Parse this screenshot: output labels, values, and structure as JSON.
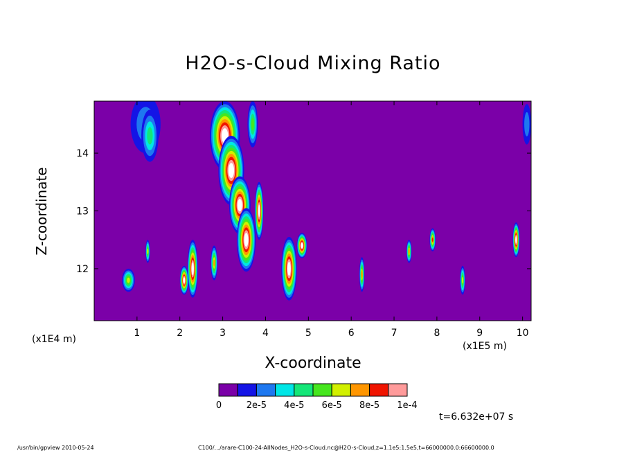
{
  "chart_data": {
    "type": "heatmap",
    "title": "H2O-s-Cloud Mixing Ratio",
    "xlabel": "X-coordinate",
    "ylabel": "Z-coordinate",
    "x_scale_label": "(x1E5 m)",
    "y_scale_label": "(x1E4 m)",
    "x_ticks": [
      1,
      2,
      3,
      4,
      5,
      6,
      7,
      8,
      9,
      10
    ],
    "y_ticks": [
      12,
      13,
      14
    ],
    "xlim": [
      0.0,
      10.2
    ],
    "ylim": [
      11.1,
      14.9
    ],
    "colorbar": {
      "levels": [
        0,
        1e-05,
        2e-05,
        3e-05,
        4e-05,
        5e-05,
        6e-05,
        7e-05,
        8e-05,
        9e-05,
        0.0001
      ],
      "tick_labels": [
        "0",
        "2e-5",
        "4e-5",
        "6e-5",
        "8e-5",
        "1e-4"
      ],
      "colors": [
        "#7b00a8",
        "#1414e6",
        "#1e78f0",
        "#00e6e6",
        "#14e678",
        "#46e61e",
        "#d2f000",
        "#ff9600",
        "#f01400",
        "#ff9b9b"
      ],
      "above_max_color": "#ffffff"
    },
    "cloud_features": [
      {
        "x": 1.2,
        "z": 14.5,
        "dx": 0.35,
        "dz": 0.5,
        "level": 2
      },
      {
        "x": 1.3,
        "z": 14.3,
        "dx": 0.2,
        "dz": 0.45,
        "level": 4
      },
      {
        "x": 3.05,
        "z": 14.3,
        "dx": 0.35,
        "dz": 0.6,
        "level": 11
      },
      {
        "x": 3.2,
        "z": 13.7,
        "dx": 0.3,
        "dz": 0.6,
        "level": 11
      },
      {
        "x": 3.4,
        "z": 13.1,
        "dx": 0.25,
        "dz": 0.5,
        "level": 11
      },
      {
        "x": 3.55,
        "z": 12.5,
        "dx": 0.22,
        "dz": 0.55,
        "level": 11
      },
      {
        "x": 3.7,
        "z": 14.5,
        "dx": 0.12,
        "dz": 0.4,
        "level": 5
      },
      {
        "x": 3.85,
        "z": 13.0,
        "dx": 0.1,
        "dz": 0.5,
        "level": 11
      },
      {
        "x": 4.55,
        "z": 12.0,
        "dx": 0.18,
        "dz": 0.55,
        "level": 11
      },
      {
        "x": 4.85,
        "z": 12.4,
        "dx": 0.12,
        "dz": 0.22,
        "level": 11
      },
      {
        "x": 2.3,
        "z": 12.0,
        "dx": 0.12,
        "dz": 0.5,
        "level": 11
      },
      {
        "x": 2.1,
        "z": 11.8,
        "dx": 0.1,
        "dz": 0.25,
        "level": 11
      },
      {
        "x": 0.8,
        "z": 11.8,
        "dx": 0.15,
        "dz": 0.2,
        "level": 6
      },
      {
        "x": 1.25,
        "z": 12.3,
        "dx": 0.05,
        "dz": 0.2,
        "level": 6
      },
      {
        "x": 2.8,
        "z": 12.1,
        "dx": 0.08,
        "dz": 0.3,
        "level": 7
      },
      {
        "x": 6.25,
        "z": 11.9,
        "dx": 0.06,
        "dz": 0.3,
        "level": 7
      },
      {
        "x": 7.35,
        "z": 12.3,
        "dx": 0.06,
        "dz": 0.2,
        "level": 7
      },
      {
        "x": 7.9,
        "z": 12.5,
        "dx": 0.07,
        "dz": 0.2,
        "level": 8
      },
      {
        "x": 8.6,
        "z": 11.8,
        "dx": 0.06,
        "dz": 0.25,
        "level": 6
      },
      {
        "x": 9.85,
        "z": 12.5,
        "dx": 0.08,
        "dz": 0.3,
        "level": 11
      },
      {
        "x": 10.1,
        "z": 14.5,
        "dx": 0.1,
        "dz": 0.35,
        "level": 2
      }
    ]
  },
  "time_label": "t=6.632e+07 s",
  "footer_left": "/usr/bin/gpview  2010-05-24",
  "footer_right": "C100/.../arare-C100-24-AllNodes_H2O-s-Cloud.nc@H2O-s-Cloud,z=1.1e5:1.5e5,t=66000000.0:66600000.0"
}
